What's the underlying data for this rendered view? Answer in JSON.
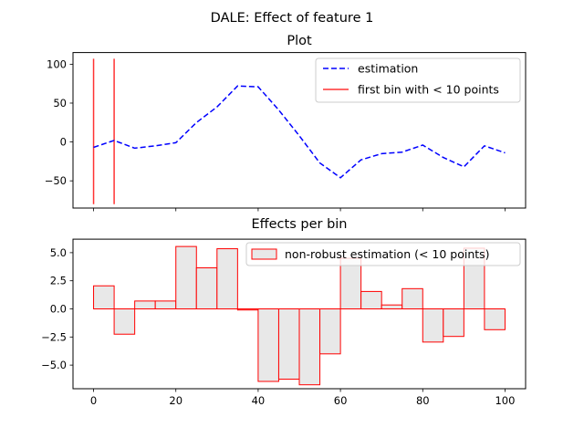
{
  "figure": {
    "suptitle": "DALE: Effect of feature 1"
  },
  "chart_data": [
    {
      "type": "line",
      "title": "Plot",
      "xlabel": "",
      "ylabel": "",
      "xlim": [
        -5,
        105
      ],
      "ylim": [
        -85,
        115
      ],
      "xticks": [
        0,
        20,
        40,
        60,
        80,
        100
      ],
      "show_xtick_labels": false,
      "yticks": [
        -50,
        0,
        50,
        100
      ],
      "grid": false,
      "legend_position": "upper right",
      "series": [
        {
          "name": "estimation",
          "style": "dashed",
          "color": "#0000ff",
          "x": [
            0,
            5,
            10,
            15,
            20,
            25,
            30,
            35,
            40,
            45,
            50,
            55,
            60,
            65,
            70,
            75,
            80,
            85,
            90,
            95,
            100
          ],
          "y": [
            -7,
            2,
            -8,
            -5,
            -1,
            25,
            45,
            72,
            71,
            41,
            8,
            -27,
            -46,
            -23,
            -15,
            -13,
            -4,
            -20,
            -32,
            -5,
            -14
          ]
        }
      ],
      "vlines": {
        "name": "first bin with < 10 points",
        "color": "#ff0000",
        "x": [
          0,
          5
        ],
        "ymin": -80,
        "ymax": 107
      }
    },
    {
      "type": "bar",
      "title": "Effects per bin",
      "xlabel": "",
      "ylabel": "",
      "xlim": [
        -5,
        105
      ],
      "ylim": [
        -7.1,
        6.2
      ],
      "xticks": [
        0,
        20,
        40,
        60,
        80,
        100
      ],
      "yticks": [
        -5.0,
        -2.5,
        0.0,
        2.5,
        5.0
      ],
      "ytick_labels": [
        "−5.0",
        "−2.5",
        "0.0",
        "2.5",
        "5.0"
      ],
      "grid": false,
      "legend_position": "upper right",
      "series": [
        {
          "name": "non-robust estimation (< 10 points)",
          "face_color": "#e8e8e8",
          "edge_color": "#ff0000",
          "bin_width": 5,
          "bin_starts": [
            0,
            5,
            10,
            15,
            20,
            25,
            30,
            35,
            40,
            45,
            50,
            55,
            60,
            65,
            70,
            75,
            80,
            85,
            90,
            95
          ],
          "values": [
            2.05,
            -2.25,
            0.7,
            0.7,
            5.55,
            3.65,
            5.35,
            -0.1,
            -6.45,
            -6.25,
            -6.75,
            -4.0,
            4.5,
            1.55,
            0.35,
            1.8,
            -2.95,
            -2.45,
            5.4,
            -1.85
          ]
        }
      ]
    }
  ]
}
